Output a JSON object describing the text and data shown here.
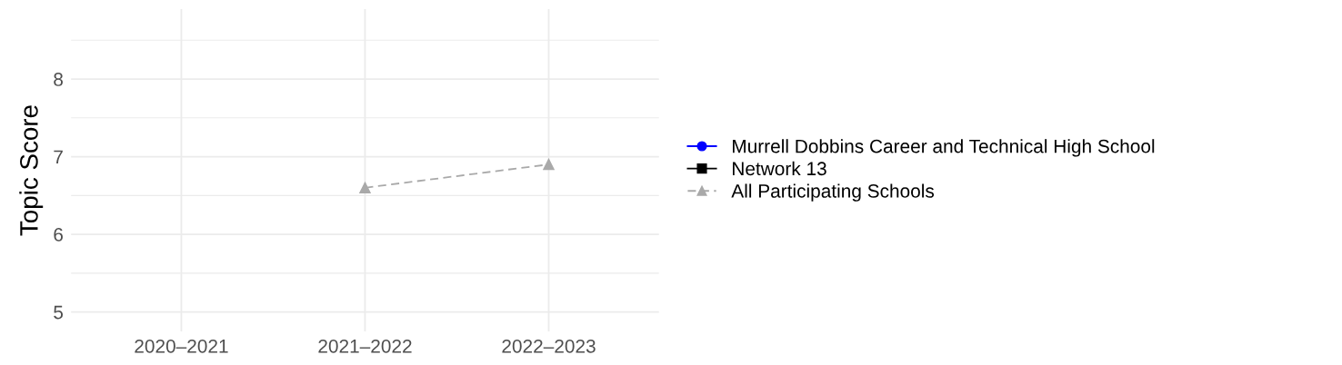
{
  "chart_data": {
    "type": "line",
    "ylabel": "Topic Score",
    "categories": [
      "2020–2021",
      "2021–2022",
      "2022–2023"
    ],
    "series": [
      {
        "name": "Murrell Dobbins Career and Technical High School",
        "color": "#0000ff",
        "marker": "circle",
        "line_style": "solid",
        "values": [
          null,
          null,
          null
        ]
      },
      {
        "name": "Network 13",
        "color": "#000000",
        "marker": "square",
        "line_style": "solid",
        "values": [
          null,
          null,
          null
        ]
      },
      {
        "name": "All Participating Schools",
        "color": "#a9a9a9",
        "marker": "triangle",
        "line_style": "dashed",
        "values": [
          null,
          6.6,
          6.9
        ]
      }
    ],
    "ylim": [
      4.75,
      8.9
    ],
    "yticks": [
      5,
      6,
      7,
      8
    ],
    "grid": true,
    "legend": "right"
  }
}
